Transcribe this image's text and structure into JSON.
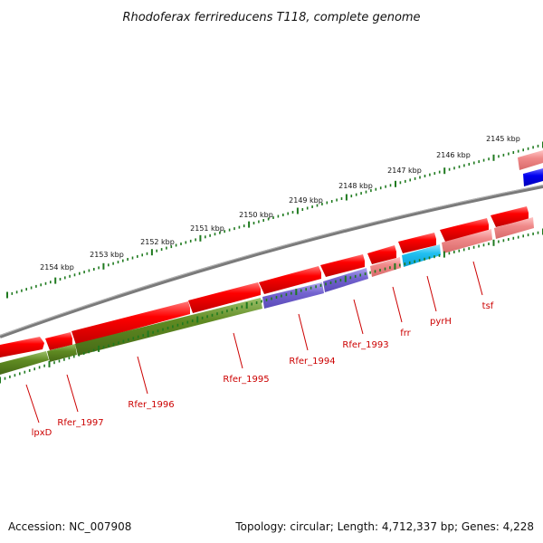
{
  "title": "Rhodoferax ferrireducens T118, complete genome",
  "footer": {
    "accession": "Accession: NC_007908",
    "summary": "Topology: circular; Length: 4,712,337 bp; Genes: 4,228"
  },
  "colors": {
    "backbone": "#7a7a7a",
    "tick": "#1f7a1f",
    "label": "#cc0000",
    "gene_red": "#ee0000",
    "gene_pink": "#f08080",
    "olive": "#5a8a1f",
    "purple": "#7060c8",
    "cyan": "#1ab8e8",
    "blue": "#0000e0"
  },
  "kbp_ticks": [
    "2145 kbp",
    "2146 kbp",
    "2147 kbp",
    "2148 kbp",
    "2149 kbp",
    "2150 kbp",
    "2151 kbp",
    "2152 kbp",
    "2153 kbp",
    "2154 kbp"
  ],
  "gene_labels": [
    "lpxD",
    "Rfer_1997",
    "Rfer_1996",
    "Rfer_1995",
    "Rfer_1994",
    "Rfer_1993",
    "frr",
    "pyrH",
    "tsf"
  ]
}
